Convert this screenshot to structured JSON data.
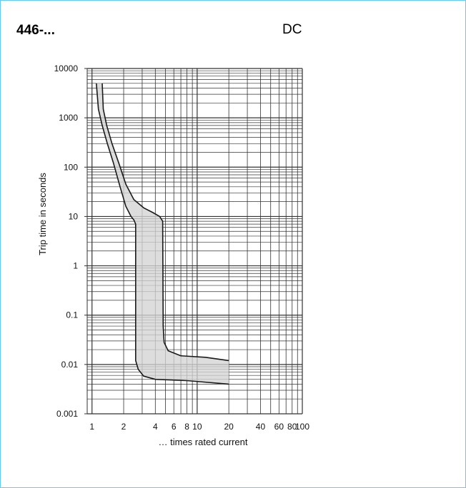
{
  "header": {
    "model": "446-...",
    "current_type": "DC"
  },
  "chart_data": {
    "type": "area",
    "title": "",
    "xlabel": "… times rated current",
    "ylabel": "Trip time in seconds",
    "x_scale": "log",
    "y_scale": "log",
    "xlim": [
      0.9,
      100
    ],
    "ylim": [
      0.001,
      10000
    ],
    "x_ticks": [
      1,
      2,
      4,
      6,
      8,
      10,
      20,
      40,
      60,
      80,
      100
    ],
    "x_tick_labels": [
      "1",
      "2",
      "4",
      "6",
      "8",
      "10",
      "20",
      "40",
      "60",
      "80",
      "100"
    ],
    "y_ticks": [
      0.001,
      0.01,
      0.1,
      1,
      10,
      100,
      1000,
      10000
    ],
    "y_tick_labels": [
      "0.001",
      "0.01",
      "0.1",
      "1",
      "10",
      "100",
      "1000",
      "10000"
    ],
    "grid": true,
    "band": {
      "lower_boundary": [
        {
          "x": 1.1,
          "y": 5000
        },
        {
          "x": 1.15,
          "y": 1500
        },
        {
          "x": 1.25,
          "y": 700
        },
        {
          "x": 1.4,
          "y": 300
        },
        {
          "x": 1.6,
          "y": 120
        },
        {
          "x": 1.85,
          "y": 40
        },
        {
          "x": 2.1,
          "y": 16
        },
        {
          "x": 2.35,
          "y": 10
        },
        {
          "x": 2.5,
          "y": 8.5
        },
        {
          "x": 2.6,
          "y": 7
        },
        {
          "x": 2.6,
          "y": 0.012
        },
        {
          "x": 2.75,
          "y": 0.008
        },
        {
          "x": 3.1,
          "y": 0.0058
        },
        {
          "x": 4,
          "y": 0.005
        },
        {
          "x": 8,
          "y": 0.0047
        },
        {
          "x": 20,
          "y": 0.004
        }
      ],
      "upper_boundary": [
        {
          "x": 1.25,
          "y": 5000
        },
        {
          "x": 1.28,
          "y": 1500
        },
        {
          "x": 1.38,
          "y": 700
        },
        {
          "x": 1.55,
          "y": 300
        },
        {
          "x": 1.8,
          "y": 120
        },
        {
          "x": 2.1,
          "y": 45
        },
        {
          "x": 2.5,
          "y": 22
        },
        {
          "x": 3.1,
          "y": 15
        },
        {
          "x": 3.8,
          "y": 12
        },
        {
          "x": 4.4,
          "y": 10
        },
        {
          "x": 4.7,
          "y": 8
        },
        {
          "x": 4.75,
          "y": 0.06
        },
        {
          "x": 4.85,
          "y": 0.028
        },
        {
          "x": 5.3,
          "y": 0.019
        },
        {
          "x": 7,
          "y": 0.015
        },
        {
          "x": 12,
          "y": 0.014
        },
        {
          "x": 20,
          "y": 0.012
        }
      ]
    },
    "colors": {
      "band_fill": "#d4d4d4",
      "curve": "#1a1a1a",
      "grid": "#333333"
    }
  }
}
